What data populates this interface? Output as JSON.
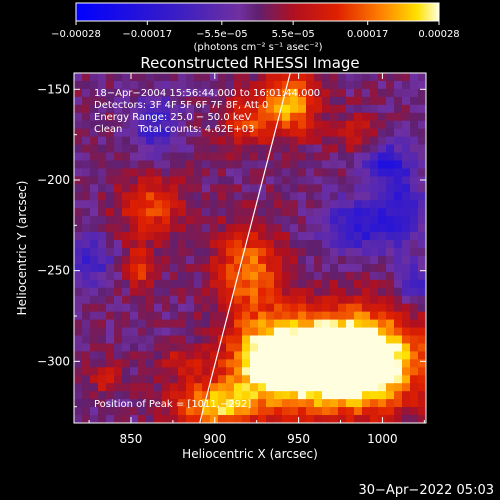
{
  "chart_data": {
    "type": "heatmap",
    "title": "Reconstructed RHESSI Image",
    "xlabel": "Heliocentric X (arcsec)",
    "ylabel": "Heliocentric Y (arcsec)",
    "xlim": [
      816,
      1026
    ],
    "ylim": [
      -334,
      -141
    ],
    "x_ticks": [
      850,
      900,
      950,
      1000
    ],
    "y_ticks": [
      -150,
      -200,
      -250,
      -300
    ],
    "x_tick_labels": [
      "850",
      "900",
      "950",
      "1000"
    ],
    "y_tick_labels": [
      "−150",
      "−200",
      "−250",
      "−300"
    ],
    "colorbar": {
      "min": -0.00028,
      "max": 0.00028,
      "ticks": [
        -0.00028,
        -0.00017,
        -5.5e-05,
        5.5e-05,
        0.00017,
        0.00028
      ],
      "tick_labels": [
        "−0.00028",
        "−0.00017",
        "−5.5e−05",
        "5.5e−05",
        "0.00017",
        "0.00028"
      ],
      "units": "(photons cm⁻² s⁻¹ asec⁻²)"
    },
    "info_lines": [
      "18−Apr−2004 15:56:44.000 to 16:01:44.000",
      "Detectors: 3F 4F 5F 6F 7F 8F, Att 0",
      "Energy Range: 25.0 − 50.0 keV",
      "Clean     Total counts: 4.62E+03"
    ],
    "peak_label": "Position of Peak = [1011,−292]",
    "limb_line": [
      [
        891,
        -334
      ],
      [
        945,
        -141
      ]
    ],
    "emission_blobs": [
      {
        "x": 962,
        "y": -300,
        "sx": 30,
        "sy": 18,
        "amp": 0.00028
      },
      {
        "x": 990,
        "y": -300,
        "sx": 25,
        "sy": 18,
        "amp": 0.00026
      },
      {
        "x": 920,
        "y": -250,
        "sx": 14,
        "sy": 18,
        "amp": 0.00018
      },
      {
        "x": 935,
        "y": -300,
        "sx": 18,
        "sy": 14,
        "amp": 0.00022
      },
      {
        "x": 900,
        "y": -325,
        "sx": 18,
        "sy": 10,
        "amp": 0.00022
      },
      {
        "x": 945,
        "y": -158,
        "sx": 12,
        "sy": 12,
        "amp": 0.00022
      },
      {
        "x": 918,
        "y": -168,
        "sx": 10,
        "sy": 10,
        "amp": 0.00013
      },
      {
        "x": 862,
        "y": -215,
        "sx": 14,
        "sy": 12,
        "amp": 0.00014
      },
      {
        "x": 855,
        "y": -248,
        "sx": 6,
        "sy": 8,
        "amp": 0.00014
      },
      {
        "x": 985,
        "y": -175,
        "sx": 10,
        "sy": 8,
        "amp": 9e-05
      },
      {
        "x": 835,
        "y": -310,
        "sx": 6,
        "sy": 6,
        "amp": 0.0001
      },
      {
        "x": 880,
        "y": -300,
        "sx": 10,
        "sy": 6,
        "amp": 8e-05
      }
    ],
    "negative_blobs": [
      {
        "x": 985,
        "y": -225,
        "sx": 14,
        "sy": 10,
        "amp": -0.00016
      },
      {
        "x": 1010,
        "y": -210,
        "sx": 10,
        "sy": 18,
        "amp": -0.00014
      },
      {
        "x": 865,
        "y": -170,
        "sx": 10,
        "sy": 12,
        "amp": -0.00013
      },
      {
        "x": 825,
        "y": -245,
        "sx": 10,
        "sy": 10,
        "amp": -0.00012
      },
      {
        "x": 1020,
        "y": -258,
        "sx": 7,
        "sy": 8,
        "amp": -0.00012
      },
      {
        "x": 1000,
        "y": -190,
        "sx": 8,
        "sy": 6,
        "amp": -0.00015
      }
    ]
  },
  "footer": {
    "timestamp": "30−Apr−2022 05:03"
  }
}
